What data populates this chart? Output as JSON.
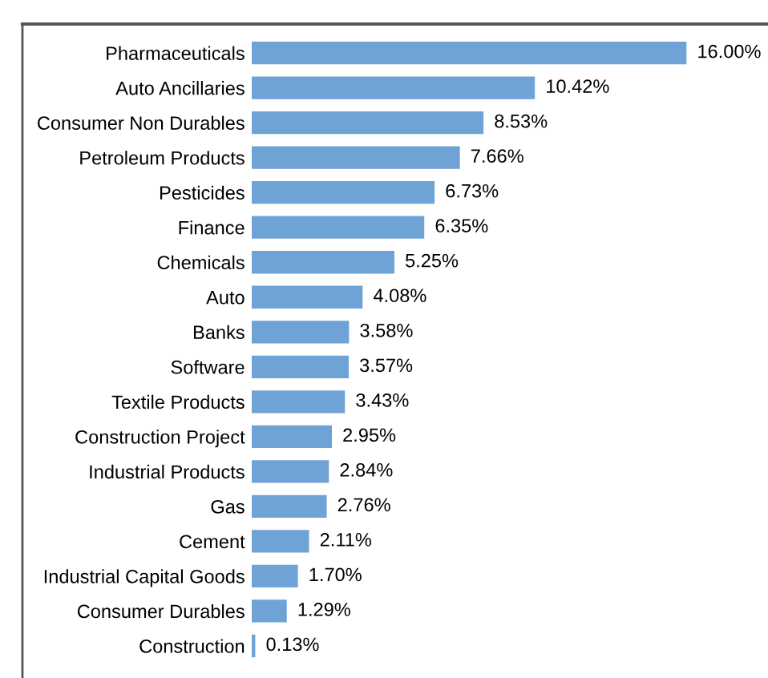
{
  "chart_data": {
    "type": "bar",
    "orientation": "horizontal",
    "data_labels": true,
    "color": "#6fa3d6",
    "categories": [
      "Pharmaceuticals",
      "Auto Ancillaries",
      "Consumer Non Durables",
      "Petroleum Products",
      "Pesticides",
      "Finance",
      "Chemicals",
      "Auto",
      "Banks",
      "Software",
      "Textile Products",
      "Construction Project",
      "Industrial Products",
      "Gas",
      "Cement",
      "Industrial Capital Goods",
      "Consumer Durables",
      "Construction"
    ],
    "values": [
      16.0,
      10.42,
      8.53,
      7.66,
      6.73,
      6.35,
      5.25,
      4.08,
      3.58,
      3.57,
      3.43,
      2.95,
      2.84,
      2.76,
      2.11,
      1.7,
      1.29,
      0.13
    ],
    "value_labels": [
      "16.00%",
      "10.42%",
      "8.53%",
      "7.66%",
      "6.73%",
      "6.35%",
      "5.25%",
      "4.08%",
      "3.58%",
      "3.57%",
      "3.43%",
      "2.95%",
      "2.84%",
      "2.76%",
      "2.11%",
      "1.70%",
      "1.29%",
      "0.13%"
    ]
  }
}
